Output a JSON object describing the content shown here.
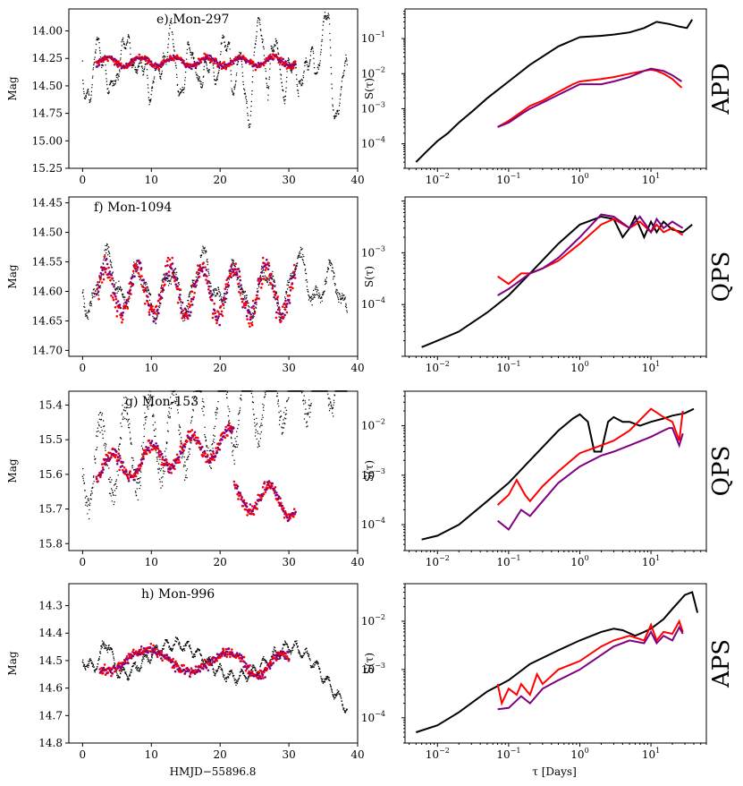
{
  "figure": {
    "left_xlabel": "HMJD−55896.8",
    "right_xlabel": "τ [Days]",
    "left_ylabel": "Mag",
    "right_ylabel": "S(τ)"
  },
  "colors": {
    "kepler": "#000000",
    "r_band": "#ff0000",
    "i_band": "#800080"
  },
  "chart_data": [
    {
      "type": "scatter",
      "title": "e) Mon-297",
      "xlim": [
        -2,
        40
      ],
      "ylim": [
        15.25,
        13.8
      ],
      "xticks": [
        0,
        10,
        20,
        30,
        40
      ],
      "yticks": [
        14.0,
        14.25,
        14.5,
        14.75,
        15.0,
        15.25
      ],
      "ytick_decimals": 2,
      "variability_class": "APD"
    },
    {
      "type": "line",
      "xscale": "log",
      "yscale": "log",
      "xlim": [
        0.0035,
        60
      ],
      "ylim": [
        2e-05,
        0.7
      ],
      "yticks": [
        -4,
        -3,
        -2,
        -1
      ],
      "series": [
        {
          "color": "#000000",
          "tau": [
            0.005,
            0.007,
            0.01,
            0.014,
            0.02,
            0.03,
            0.05,
            0.1,
            0.2,
            0.5,
            1,
            2,
            3,
            5,
            8,
            12,
            18,
            25,
            32,
            38
          ],
          "S": [
            3e-05,
            6e-05,
            0.00012,
            0.0002,
            0.0004,
            0.0008,
            0.002,
            0.006,
            0.018,
            0.06,
            0.11,
            0.12,
            0.13,
            0.15,
            0.2,
            0.3,
            0.26,
            0.22,
            0.2,
            0.35
          ]
        },
        {
          "color": "#ff0000",
          "tau": [
            0.07,
            0.1,
            0.15,
            0.2,
            0.3,
            0.5,
            0.8,
            1,
            2,
            3,
            5,
            8,
            10,
            12,
            15,
            20,
            27
          ],
          "S": [
            0.0003,
            0.00045,
            0.0008,
            0.0012,
            0.0017,
            0.003,
            0.005,
            0.006,
            0.007,
            0.008,
            0.01,
            0.012,
            0.013,
            0.012,
            0.01,
            0.007,
            0.004
          ]
        },
        {
          "color": "#800080",
          "tau": [
            0.07,
            0.1,
            0.15,
            0.2,
            0.3,
            0.5,
            0.8,
            1,
            2,
            3,
            5,
            8,
            10,
            12,
            15,
            20,
            27
          ],
          "S": [
            0.0003,
            0.0004,
            0.0007,
            0.001,
            0.0015,
            0.0025,
            0.004,
            0.005,
            0.005,
            0.006,
            0.008,
            0.012,
            0.014,
            0.013,
            0.012,
            0.009,
            0.006
          ]
        }
      ]
    },
    {
      "type": "scatter",
      "title": "f) Mon-1094",
      "xlim": [
        -2,
        40
      ],
      "ylim": [
        14.71,
        14.44
      ],
      "xticks": [
        0,
        10,
        20,
        30,
        40
      ],
      "yticks": [
        14.45,
        14.5,
        14.55,
        14.6,
        14.65,
        14.7
      ],
      "ytick_decimals": 2,
      "variability_class": "QPS"
    },
    {
      "type": "line",
      "xscale": "log",
      "yscale": "log",
      "xlim": [
        0.0035,
        60
      ],
      "ylim": [
        1e-05,
        0.012
      ],
      "yticks": [
        -4,
        -3
      ],
      "series": [
        {
          "color": "#000000",
          "tau": [
            0.006,
            0.01,
            0.02,
            0.05,
            0.1,
            0.2,
            0.5,
            1,
            2,
            3,
            4,
            5,
            6,
            8,
            10,
            12,
            15,
            20,
            28,
            38
          ],
          "S": [
            1.5e-05,
            2e-05,
            3e-05,
            7e-05,
            0.00015,
            0.0004,
            0.0015,
            0.0035,
            0.005,
            0.0045,
            0.002,
            0.003,
            0.005,
            0.002,
            0.004,
            0.0025,
            0.004,
            0.0028,
            0.0025,
            0.0035
          ]
        },
        {
          "color": "#ff0000",
          "tau": [
            0.07,
            0.1,
            0.15,
            0.2,
            0.3,
            0.5,
            1,
            2,
            3,
            5,
            7,
            10,
            12,
            15,
            20,
            28
          ],
          "S": [
            0.00035,
            0.00025,
            0.0004,
            0.0004,
            0.0005,
            0.0007,
            0.0015,
            0.0035,
            0.0045,
            0.003,
            0.004,
            0.0025,
            0.0035,
            0.0025,
            0.003,
            0.0022
          ]
        },
        {
          "color": "#800080",
          "tau": [
            0.07,
            0.1,
            0.15,
            0.2,
            0.3,
            0.5,
            1,
            2,
            3,
            5,
            7,
            10,
            12,
            15,
            20,
            28
          ],
          "S": [
            0.00015,
            0.0002,
            0.0003,
            0.0004,
            0.0005,
            0.0008,
            0.002,
            0.0055,
            0.005,
            0.003,
            0.005,
            0.0025,
            0.0045,
            0.003,
            0.004,
            0.003
          ]
        }
      ]
    },
    {
      "type": "scatter",
      "title": "g) Mon-153",
      "xlim": [
        -2,
        40
      ],
      "ylim": [
        15.82,
        15.36
      ],
      "xticks": [
        0,
        10,
        20,
        30,
        40
      ],
      "yticks": [
        15.4,
        15.5,
        15.6,
        15.7,
        15.8
      ],
      "ytick_decimals": 1,
      "variability_class": "QPS"
    },
    {
      "type": "line",
      "xscale": "log",
      "yscale": "log",
      "xlim": [
        0.0035,
        60
      ],
      "ylim": [
        3e-05,
        0.05
      ],
      "yticks": [
        -4,
        -3,
        -2
      ],
      "series": [
        {
          "color": "#000000",
          "tau": [
            0.006,
            0.01,
            0.02,
            0.05,
            0.1,
            0.2,
            0.5,
            0.8,
            1,
            1.3,
            1.6,
            2,
            2.5,
            3,
            4,
            5,
            7,
            10,
            15,
            20,
            30,
            40
          ],
          "S": [
            5e-05,
            6e-05,
            0.0001,
            0.0003,
            0.0007,
            0.002,
            0.008,
            0.014,
            0.017,
            0.012,
            0.003,
            0.003,
            0.012,
            0.015,
            0.012,
            0.012,
            0.01,
            0.012,
            0.014,
            0.016,
            0.018,
            0.022
          ]
        },
        {
          "color": "#ff0000",
          "tau": [
            0.07,
            0.1,
            0.13,
            0.17,
            0.2,
            0.3,
            0.5,
            1,
            2,
            3,
            5,
            10,
            15,
            20,
            25,
            28
          ],
          "S": [
            0.00025,
            0.0004,
            0.0008,
            0.0004,
            0.0003,
            0.0006,
            0.0012,
            0.0028,
            0.004,
            0.005,
            0.008,
            0.022,
            0.015,
            0.012,
            0.005,
            0.02
          ]
        },
        {
          "color": "#800080",
          "tau": [
            0.07,
            0.1,
            0.15,
            0.2,
            0.3,
            0.5,
            1,
            2,
            3,
            5,
            10,
            15,
            18,
            20,
            25,
            28
          ],
          "S": [
            0.00012,
            8e-05,
            0.0002,
            0.00015,
            0.0003,
            0.0007,
            0.0015,
            0.0025,
            0.003,
            0.004,
            0.006,
            0.008,
            0.009,
            0.009,
            0.004,
            0.007
          ]
        }
      ]
    },
    {
      "type": "scatter",
      "title": "h) Mon-996",
      "xlim": [
        -2,
        40
      ],
      "ylim": [
        14.8,
        14.22
      ],
      "xticks": [
        0,
        10,
        20,
        30,
        40
      ],
      "yticks": [
        14.3,
        14.4,
        14.5,
        14.6,
        14.7,
        14.8
      ],
      "ytick_decimals": 1,
      "variability_class": "APS"
    },
    {
      "type": "line",
      "xscale": "log",
      "yscale": "log",
      "xlim": [
        0.0035,
        60
      ],
      "ylim": [
        3e-05,
        0.06
      ],
      "yticks": [
        -4,
        -3,
        -2
      ],
      "series": [
        {
          "color": "#000000",
          "tau": [
            0.005,
            0.01,
            0.02,
            0.05,
            0.1,
            0.2,
            0.5,
            1,
            2,
            3,
            4,
            6,
            8,
            10,
            15,
            20,
            30,
            38,
            45
          ],
          "S": [
            5e-05,
            7e-05,
            0.00013,
            0.00035,
            0.0006,
            0.0013,
            0.0025,
            0.004,
            0.006,
            0.007,
            0.0065,
            0.005,
            0.006,
            0.007,
            0.011,
            0.018,
            0.035,
            0.04,
            0.015
          ]
        },
        {
          "color": "#ff0000",
          "tau": [
            0.07,
            0.08,
            0.1,
            0.13,
            0.15,
            0.2,
            0.25,
            0.3,
            0.5,
            1,
            2,
            3,
            5,
            8,
            10,
            12,
            15,
            20,
            25,
            28
          ],
          "S": [
            0.0005,
            0.0002,
            0.0004,
            0.0003,
            0.0005,
            0.0003,
            0.0008,
            0.0005,
            0.001,
            0.0015,
            0.003,
            0.004,
            0.005,
            0.004,
            0.0085,
            0.004,
            0.006,
            0.0055,
            0.01,
            0.006
          ]
        },
        {
          "color": "#800080",
          "tau": [
            0.07,
            0.1,
            0.15,
            0.2,
            0.3,
            0.5,
            1,
            2,
            3,
            5,
            8,
            10,
            12,
            15,
            20,
            25,
            28
          ],
          "S": [
            0.00015,
            0.00016,
            0.00028,
            0.0002,
            0.0004,
            0.0006,
            0.001,
            0.002,
            0.003,
            0.004,
            0.0035,
            0.006,
            0.0035,
            0.005,
            0.004,
            0.0075,
            0.0055
          ]
        }
      ]
    }
  ]
}
